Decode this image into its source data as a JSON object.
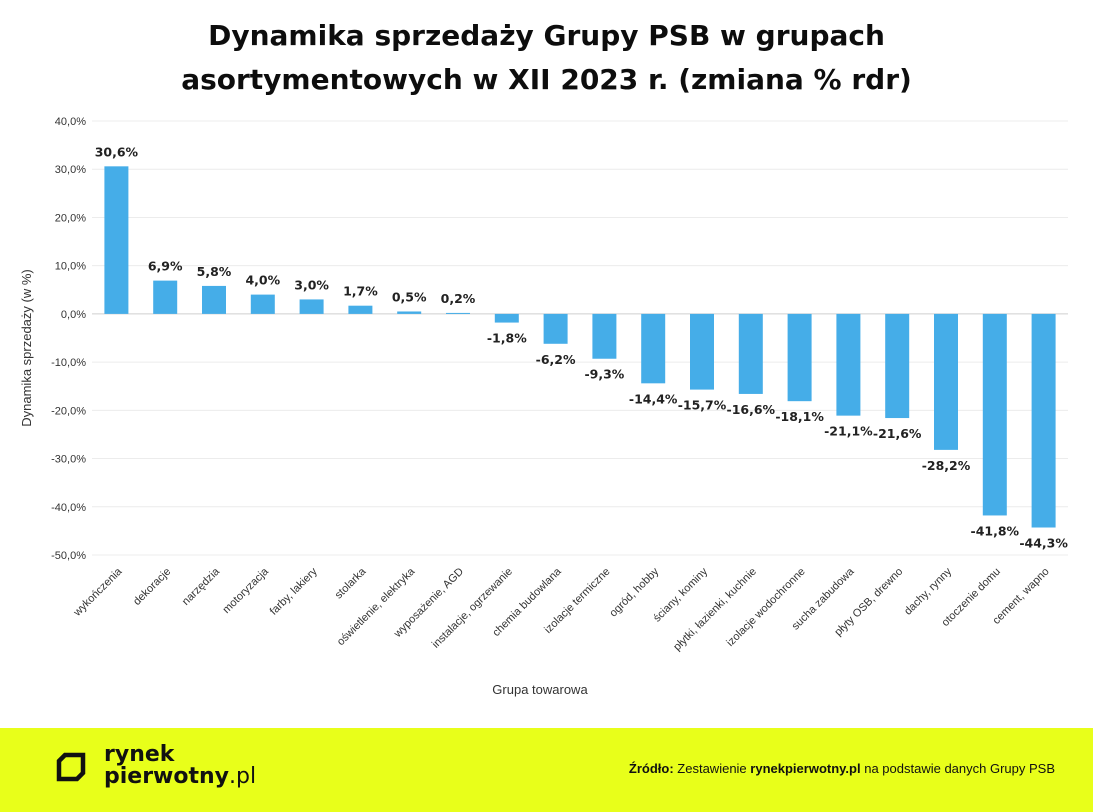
{
  "title_line1": "Dynamika sprzedaży Grupy PSB w grupach",
  "title_line2": "asortymentowych w XII 2023 r. (zmiana % rdr)",
  "footer": {
    "logo_line1": "rynek",
    "logo_line2": "pierwotny",
    "logo_domain": ".pl",
    "source_label": "Źródło:",
    "source_text_1": "Zestawienie",
    "source_brand": "rynekpierwotny.pl",
    "source_text_2": "na podstawie danych Grupy PSB",
    "accent_color": "#e8ff1a"
  },
  "chart_data": {
    "type": "bar",
    "categories": [
      "wykończenia",
      "dekoracje",
      "narzędzia",
      "motoryzacja",
      "farby, lakiery",
      "stolarka",
      "oświetlenie, elektryka",
      "wyposażenie, AGD",
      "instalacje, ogrzewanie",
      "chemia budowlana",
      "izolacje termiczne",
      "ogród, hobby",
      "ściany, kominy",
      "płytki, łazienki, kuchnie",
      "izolacje wodochronne",
      "sucha zabudowa",
      "płyty OSB, drewno",
      "dachy, rynny",
      "otoczenie domu",
      "cement, wapno"
    ],
    "values": [
      30.6,
      6.9,
      5.8,
      4.0,
      3.0,
      1.7,
      0.5,
      0.2,
      -1.8,
      -6.2,
      -9.3,
      -14.4,
      -15.7,
      -16.6,
      -18.1,
      -21.1,
      -21.6,
      -28.2,
      -41.8,
      -44.3
    ],
    "value_labels": [
      "30,6%",
      "6,9%",
      "5,8%",
      "4,0%",
      "3,0%",
      "1,7%",
      "0,5%",
      "0,2%",
      "-1,8%",
      "-6,2%",
      "-9,3%",
      "-14,4%",
      "-15,7%",
      "-16,6%",
      "-18,1%",
      "-21,1%",
      "-21,6%",
      "-28,2%",
      "-41,8%",
      "-44,3%"
    ],
    "yticks": [
      40,
      30,
      20,
      10,
      0,
      -10,
      -20,
      -30,
      -40,
      -50
    ],
    "ytick_labels": [
      "40,0%",
      "30,0%",
      "20,0%",
      "10,0%",
      "0,0%",
      "-10,0%",
      "-20,0%",
      "-30,0%",
      "-40,0%",
      "-50,0%"
    ],
    "ylim": [
      -50,
      40
    ],
    "xlabel": "Grupa towarowa",
    "ylabel": "Dynamika sprzedaży (w %)",
    "bar_color": "#45ade8",
    "grid": true,
    "legend": "none"
  }
}
